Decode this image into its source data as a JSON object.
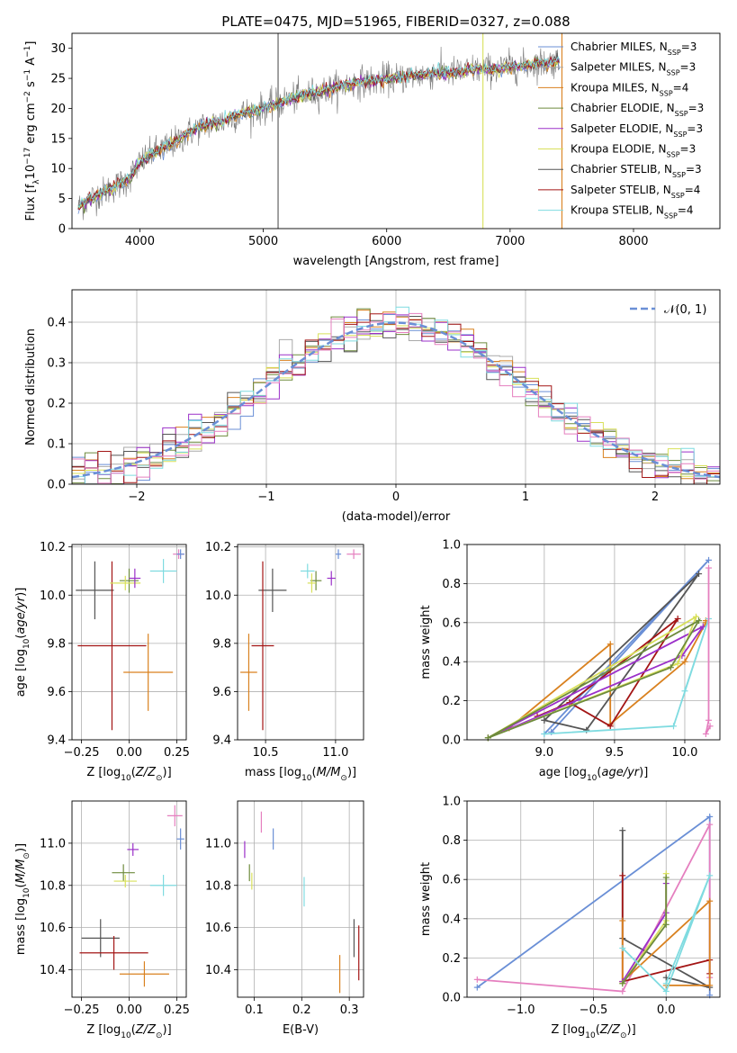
{
  "title": "PLATE=0475, MJD=51965, FIBERID=0327, z=0.088",
  "colors": {
    "model_colors": [
      "#6a8fd6",
      "#a9a9a9",
      "#d9811f",
      "#6e8b3d",
      "#9b30c9",
      "#d8e05a",
      "#555555",
      "#a31515",
      "#7fdbe0",
      "#e57fbf"
    ]
  },
  "chart_data": [
    {
      "id": "spectrum",
      "type": "line",
      "title": "PLATE=0475, MJD=51965, FIBERID=0327, z=0.088",
      "xlabel": "wavelength [Angstrom, rest frame]",
      "ylabel": "Flux [f_λ 10^-17 erg cm^-2 s^-1 A^-1]",
      "xlim": [
        3450,
        8700
      ],
      "ylim": [
        0,
        32.5
      ],
      "xticks": [
        4000,
        5000,
        6000,
        7000,
        8000
      ],
      "yticks": [
        0,
        5,
        10,
        15,
        20,
        25,
        30
      ],
      "grid": false,
      "legend_location": "right",
      "legend": [
        {
          "label": "Chabrier MILES, N",
          "sub": "SSP",
          "suffix": "=3",
          "color": "#6a8fd6"
        },
        {
          "label": "Salpeter MILES, N",
          "sub": "SSP",
          "suffix": "=3",
          "color": "#a9a9a9"
        },
        {
          "label": "Kroupa MILES, N",
          "sub": "SSP",
          "suffix": "=4",
          "color": "#d9811f"
        },
        {
          "label": "Chabrier ELODIE, N",
          "sub": "SSP",
          "suffix": "=3",
          "color": "#6e8b3d"
        },
        {
          "label": "Salpeter ELODIE, N",
          "sub": "SSP",
          "suffix": "=3",
          "color": "#9b30c9"
        },
        {
          "label": "Kroupa ELODIE, N",
          "sub": "SSP",
          "suffix": "=3",
          "color": "#d8e05a"
        },
        {
          "label": "Chabrier STELIB, N",
          "sub": "SSP",
          "suffix": "=3",
          "color": "#555555"
        },
        {
          "label": "Salpeter STELIB, N",
          "sub": "SSP",
          "suffix": "=4",
          "color": "#a31515"
        },
        {
          "label": "Kroupa STELIB, N",
          "sub": "SSP",
          "suffix": "=4",
          "color": "#7fdbe0"
        }
      ],
      "continuum": {
        "x": [
          3500,
          3600,
          3700,
          3800,
          3900,
          4000,
          4100,
          4200,
          4300,
          4400,
          4500,
          4600,
          4700,
          4800,
          4900,
          5000,
          5100,
          5200,
          5300,
          5400,
          5500,
          5600,
          5700,
          5800,
          5900,
          6000,
          6100,
          6200,
          6300,
          6400,
          6500,
          6600,
          6700,
          6800,
          6900,
          7000,
          7100,
          7200,
          7300,
          7400
        ],
        "y": [
          3.5,
          5,
          6,
          7,
          8,
          11,
          12.5,
          13.5,
          14.5,
          16,
          17,
          17.5,
          18,
          19,
          19.5,
          20,
          20.5,
          21.5,
          22,
          22.5,
          23,
          23.5,
          24,
          24.5,
          24.5,
          25,
          25,
          25.5,
          25.5,
          26,
          26,
          26,
          26.5,
          26.5,
          26.5,
          27,
          27,
          27.5,
          27.5,
          28
        ]
      },
      "spikes": [
        {
          "x": 5120,
          "y": 32.5,
          "color": "#555555"
        },
        {
          "x": 6780,
          "y": 32.5,
          "color": "#d8e05a"
        },
        {
          "x": 7420,
          "y": 32.5,
          "color": "#d9811f"
        }
      ]
    },
    {
      "id": "residual_histogram",
      "type": "line",
      "xlabel": "(data-model)/error",
      "ylabel": "Normed distribution",
      "xlim": [
        -2.5,
        2.5
      ],
      "ylim": [
        0,
        0.48
      ],
      "xticks": [
        -2,
        -1,
        0,
        1,
        2
      ],
      "yticks": [
        0.0,
        0.1,
        0.2,
        0.3,
        0.4
      ],
      "grid": true,
      "legend_location": "top-right",
      "reference_curve": {
        "name": "N(0,1)",
        "label": "𝒩(0, 1)",
        "color": "#6a8fd6"
      },
      "bin_width": 0.1
    },
    {
      "id": "age_vs_Z",
      "type": "scatter",
      "xlabel": "Z [log10(Z/Z☉)]",
      "ylabel": "age  [log10(age/yr)]",
      "xlim": [
        -0.3,
        0.3
      ],
      "ylim": [
        9.4,
        10.21
      ],
      "xticks": [
        -0.25,
        0.0,
        0.25
      ],
      "yticks": [
        9.4,
        9.6,
        9.8,
        10.0,
        10.2
      ],
      "grid": true,
      "points": [
        {
          "x": -0.18,
          "y": 10.02,
          "xerr": 0.1,
          "yerr": 0.12,
          "color": "#555555"
        },
        {
          "x": -0.09,
          "y": 9.79,
          "xerr": 0.18,
          "yerr": 0.35,
          "color": "#a31515"
        },
        {
          "x": 0.1,
          "y": 9.68,
          "xerr": 0.13,
          "yerr": 0.16,
          "color": "#d9811f"
        },
        {
          "x": 0.0,
          "y": 10.06,
          "xerr": 0.05,
          "yerr": 0.05,
          "color": "#6e8b3d"
        },
        {
          "x": -0.02,
          "y": 10.05,
          "xerr": 0.08,
          "yerr": 0.03,
          "color": "#d8e05a"
        },
        {
          "x": 0.03,
          "y": 10.07,
          "xerr": 0.03,
          "yerr": 0.04,
          "color": "#9b30c9"
        },
        {
          "x": 0.18,
          "y": 10.1,
          "xerr": 0.07,
          "yerr": 0.05,
          "color": "#7fdbe0"
        },
        {
          "x": 0.26,
          "y": 10.17,
          "xerr": 0.03,
          "yerr": 0.02,
          "color": "#e57fbf"
        },
        {
          "x": 0.27,
          "y": 10.17,
          "xerr": 0.02,
          "yerr": 0.02,
          "color": "#6a8fd6"
        }
      ]
    },
    {
      "id": "age_vs_mass",
      "type": "scatter",
      "xlabel": "mass [log10(M/M☉)]",
      "ylabel": "",
      "xlim": [
        10.3,
        11.2
      ],
      "ylim": [
        9.4,
        10.21
      ],
      "xticks": [
        10.5,
        11.0
      ],
      "yticks": [
        9.4,
        9.6,
        9.8,
        10.0,
        10.2
      ],
      "grid": true,
      "points": [
        {
          "x": 10.55,
          "y": 10.02,
          "xerr": 0.1,
          "yerr": 0.09,
          "color": "#555555"
        },
        {
          "x": 10.48,
          "y": 9.79,
          "xerr": 0.08,
          "yerr": 0.35,
          "color": "#a31515"
        },
        {
          "x": 10.38,
          "y": 9.68,
          "xerr": 0.06,
          "yerr": 0.16,
          "color": "#d9811f"
        },
        {
          "x": 10.86,
          "y": 10.06,
          "xerr": 0.04,
          "yerr": 0.04,
          "color": "#6e8b3d"
        },
        {
          "x": 10.83,
          "y": 10.05,
          "xerr": 0.03,
          "yerr": 0.04,
          "color": "#d8e05a"
        },
        {
          "x": 10.97,
          "y": 10.07,
          "xerr": 0.03,
          "yerr": 0.03,
          "color": "#9b30c9"
        },
        {
          "x": 10.8,
          "y": 10.1,
          "xerr": 0.05,
          "yerr": 0.03,
          "color": "#7fdbe0"
        },
        {
          "x": 11.13,
          "y": 10.17,
          "xerr": 0.05,
          "yerr": 0.02,
          "color": "#e57fbf"
        },
        {
          "x": 11.02,
          "y": 10.17,
          "xerr": 0.02,
          "yerr": 0.02,
          "color": "#6a8fd6"
        }
      ]
    },
    {
      "id": "mass_weight_vs_age",
      "type": "line",
      "xlabel": "age  [log10(age/yr)]",
      "ylabel": "mass weight",
      "xlim": [
        8.45,
        10.25
      ],
      "ylim": [
        0,
        1
      ],
      "xticks": [
        9.0,
        9.5,
        10.0
      ],
      "yticks": [
        0.0,
        0.2,
        0.4,
        0.6,
        0.8,
        1.0
      ],
      "grid": true,
      "series": [
        {
          "color": "#6a8fd6",
          "x": [
            9.0,
            10.17,
            9.05
          ],
          "y": [
            0.03,
            0.92,
            0.04
          ]
        },
        {
          "color": "#d9811f",
          "x": [
            8.75,
            9.47,
            9.47,
            10.0,
            10.15,
            10.15
          ],
          "y": [
            0.06,
            0.49,
            0.08,
            0.4,
            0.6,
            0.61
          ]
        },
        {
          "color": "#555555",
          "x": [
            9.0,
            10.1,
            9.3,
            9.0
          ],
          "y": [
            0.1,
            0.85,
            0.05,
            0.1
          ]
        },
        {
          "color": "#a31515",
          "x": [
            9.18,
            9.47,
            9.95,
            9.18,
            8.95
          ],
          "y": [
            0.19,
            0.07,
            0.62,
            0.19,
            0.12
          ]
        },
        {
          "color": "#9b30c9",
          "x": [
            8.6,
            9.98,
            10.13,
            8.6
          ],
          "y": [
            0.01,
            0.43,
            0.58,
            0.01
          ]
        },
        {
          "color": "#d8e05a",
          "x": [
            8.6,
            10.08,
            9.95,
            8.6
          ],
          "y": [
            0.01,
            0.63,
            0.39,
            0.01
          ]
        },
        {
          "color": "#6e8b3d",
          "x": [
            8.6,
            10.1,
            9.9,
            8.6
          ],
          "y": [
            0.01,
            0.61,
            0.37,
            0.01
          ]
        },
        {
          "color": "#7fdbe0",
          "x": [
            9.0,
            9.92,
            10.17,
            10.0
          ],
          "y": [
            0.03,
            0.07,
            0.62,
            0.25
          ]
        },
        {
          "color": "#e57fbf",
          "x": [
            10.17,
            10.17,
            10.15,
            10.18
          ],
          "y": [
            0.88,
            0.1,
            0.03,
            0.07
          ]
        }
      ]
    },
    {
      "id": "mass_vs_Z",
      "type": "scatter",
      "xlabel": "Z [log10(Z/Z☉)]",
      "ylabel": "mass [log10(M/M☉)]",
      "xlim": [
        -0.3,
        0.3
      ],
      "ylim": [
        10.27,
        11.2
      ],
      "xticks": [
        -0.25,
        0.0,
        0.25
      ],
      "yticks": [
        10.4,
        10.6,
        10.8,
        11.0
      ],
      "grid": true,
      "points": [
        {
          "x": -0.15,
          "y": 10.55,
          "xerr": 0.1,
          "yerr": 0.09,
          "color": "#555555"
        },
        {
          "x": -0.08,
          "y": 10.48,
          "xerr": 0.18,
          "yerr": 0.08,
          "color": "#a31515"
        },
        {
          "x": 0.08,
          "y": 10.38,
          "xerr": 0.13,
          "yerr": 0.06,
          "color": "#d9811f"
        },
        {
          "x": -0.03,
          "y": 10.86,
          "xerr": 0.06,
          "yerr": 0.04,
          "color": "#6e8b3d"
        },
        {
          "x": -0.02,
          "y": 10.82,
          "xerr": 0.06,
          "yerr": 0.03,
          "color": "#d8e05a"
        },
        {
          "x": 0.02,
          "y": 10.97,
          "xerr": 0.03,
          "yerr": 0.03,
          "color": "#9b30c9"
        },
        {
          "x": 0.18,
          "y": 10.8,
          "xerr": 0.07,
          "yerr": 0.05,
          "color": "#7fdbe0"
        },
        {
          "x": 0.24,
          "y": 11.13,
          "xerr": 0.04,
          "yerr": 0.05,
          "color": "#e57fbf"
        },
        {
          "x": 0.27,
          "y": 11.02,
          "xerr": 0.02,
          "yerr": 0.05,
          "color": "#6a8fd6"
        }
      ]
    },
    {
      "id": "mass_vs_EBV",
      "type": "scatter",
      "xlabel": "E(B-V)",
      "ylabel": "",
      "xlim": [
        0.065,
        0.33
      ],
      "ylim": [
        10.27,
        11.2
      ],
      "xticks": [
        0.1,
        0.2,
        0.3
      ],
      "yticks": [
        10.4,
        10.6,
        10.8,
        11.0
      ],
      "grid": true,
      "points": [
        {
          "x": 0.31,
          "y": 10.55,
          "xerr": 0.0,
          "yerr": 0.09,
          "color": "#555555"
        },
        {
          "x": 0.32,
          "y": 10.48,
          "xerr": 0.0,
          "yerr": 0.13,
          "color": "#a31515"
        },
        {
          "x": 0.28,
          "y": 10.38,
          "xerr": 0.0,
          "yerr": 0.09,
          "color": "#d9811f"
        },
        {
          "x": 0.09,
          "y": 10.86,
          "xerr": 0.0,
          "yerr": 0.04,
          "color": "#6e8b3d"
        },
        {
          "x": 0.095,
          "y": 10.82,
          "xerr": 0.0,
          "yerr": 0.04,
          "color": "#d8e05a"
        },
        {
          "x": 0.08,
          "y": 10.97,
          "xerr": 0.0,
          "yerr": 0.04,
          "color": "#9b30c9"
        },
        {
          "x": 0.205,
          "y": 10.77,
          "xerr": 0.0,
          "yerr": 0.07,
          "color": "#7fdbe0"
        },
        {
          "x": 0.115,
          "y": 11.1,
          "xerr": 0.0,
          "yerr": 0.05,
          "color": "#e57fbf"
        },
        {
          "x": 0.14,
          "y": 11.02,
          "xerr": 0.0,
          "yerr": 0.05,
          "color": "#6a8fd6"
        }
      ]
    },
    {
      "id": "mass_weight_vs_Z",
      "type": "line",
      "xlabel": "Z [log10(Z/Z☉)]",
      "ylabel": "mass weight",
      "xlim": [
        -1.37,
        0.37
      ],
      "ylim": [
        0,
        1
      ],
      "xticks": [
        -1.0,
        -0.5,
        0.0
      ],
      "yticks": [
        0.0,
        0.2,
        0.4,
        0.6,
        0.8,
        1.0
      ],
      "grid": true,
      "series": [
        {
          "color": "#6a8fd6",
          "x": [
            -1.3,
            0.3,
            0.3
          ],
          "y": [
            0.05,
            0.92,
            0.01
          ]
        },
        {
          "color": "#e57fbf",
          "x": [
            -1.3,
            -0.3,
            0.3,
            0.3
          ],
          "y": [
            0.09,
            0.03,
            0.88,
            0.1
          ]
        },
        {
          "color": "#555555",
          "x": [
            -0.3,
            -0.3,
            0.3,
            0.0
          ],
          "y": [
            0.85,
            0.3,
            0.05,
            0.1
          ]
        },
        {
          "color": "#a31515",
          "x": [
            -0.3,
            -0.3,
            0.3,
            0.3
          ],
          "y": [
            0.62,
            0.08,
            0.19,
            0.12
          ]
        },
        {
          "color": "#d9811f",
          "x": [
            -0.3,
            -0.3,
            0.3,
            0.3,
            0.0
          ],
          "y": [
            0.39,
            0.08,
            0.49,
            0.06,
            0.06
          ]
        },
        {
          "color": "#9b30c9",
          "x": [
            -0.3,
            0.0,
            0.0
          ],
          "y": [
            0.08,
            0.43,
            0.58
          ]
        },
        {
          "color": "#d8e05a",
          "x": [
            -0.3,
            0.0,
            0.0
          ],
          "y": [
            0.07,
            0.39,
            0.63
          ]
        },
        {
          "color": "#6e8b3d",
          "x": [
            -0.3,
            0.0,
            0.0
          ],
          "y": [
            0.07,
            0.37,
            0.61
          ]
        },
        {
          "color": "#7fdbe0",
          "x": [
            -0.3,
            0.0,
            0.3,
            0.0
          ],
          "y": [
            0.25,
            0.03,
            0.62,
            0.07
          ]
        }
      ]
    }
  ]
}
